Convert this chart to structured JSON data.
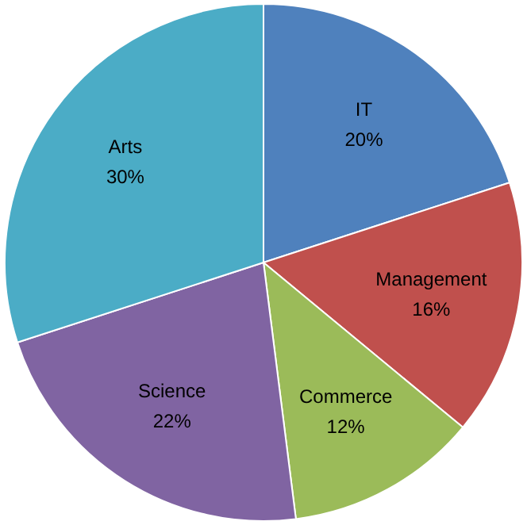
{
  "chart_data": {
    "type": "pie",
    "categories": [
      "IT",
      "Management",
      "Commerce",
      "Science",
      "Arts"
    ],
    "values": [
      20,
      16,
      12,
      22,
      30
    ],
    "value_labels": [
      "20%",
      "16%",
      "12%",
      "22%",
      "30%"
    ],
    "colors": [
      "#4f81bd",
      "#c0504d",
      "#9bbb59",
      "#8064a2",
      "#4bacc6"
    ],
    "legend": false
  }
}
